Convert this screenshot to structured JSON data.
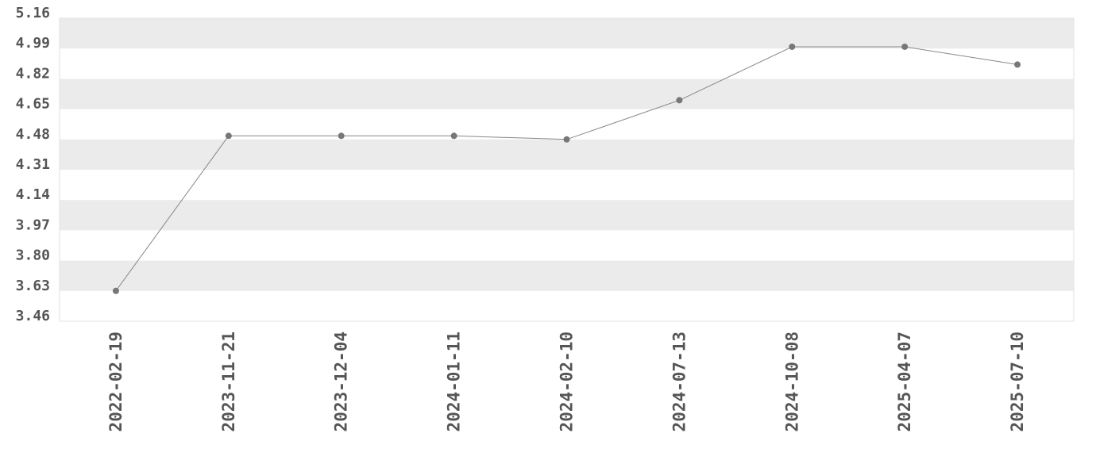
{
  "chart_data": {
    "type": "line",
    "title": "",
    "xlabel": "",
    "ylabel": "",
    "categories": [
      "2022-02-19",
      "2023-11-21",
      "2023-12-04",
      "2024-01-11",
      "2024-02-10",
      "2024-07-13",
      "2024-10-08",
      "2025-04-07",
      "2025-07-10"
    ],
    "series": [
      {
        "values": [
          3.63,
          4.5,
          4.5,
          4.5,
          4.48,
          4.7,
          5.0,
          5.0,
          4.9
        ]
      }
    ],
    "ylim": [
      3.46,
      5.16
    ],
    "yticks": [
      "3.46",
      "3.63",
      "3.80",
      "3.97",
      "4.14",
      "4.31",
      "4.48",
      "4.65",
      "4.82",
      "4.99",
      "5.16"
    ],
    "grid": "alternating horizontal bands",
    "legend": "none",
    "colors": {
      "line": "#888888",
      "marker": "#777777",
      "band": "#ebebeb",
      "tick_text": "#555555"
    }
  }
}
